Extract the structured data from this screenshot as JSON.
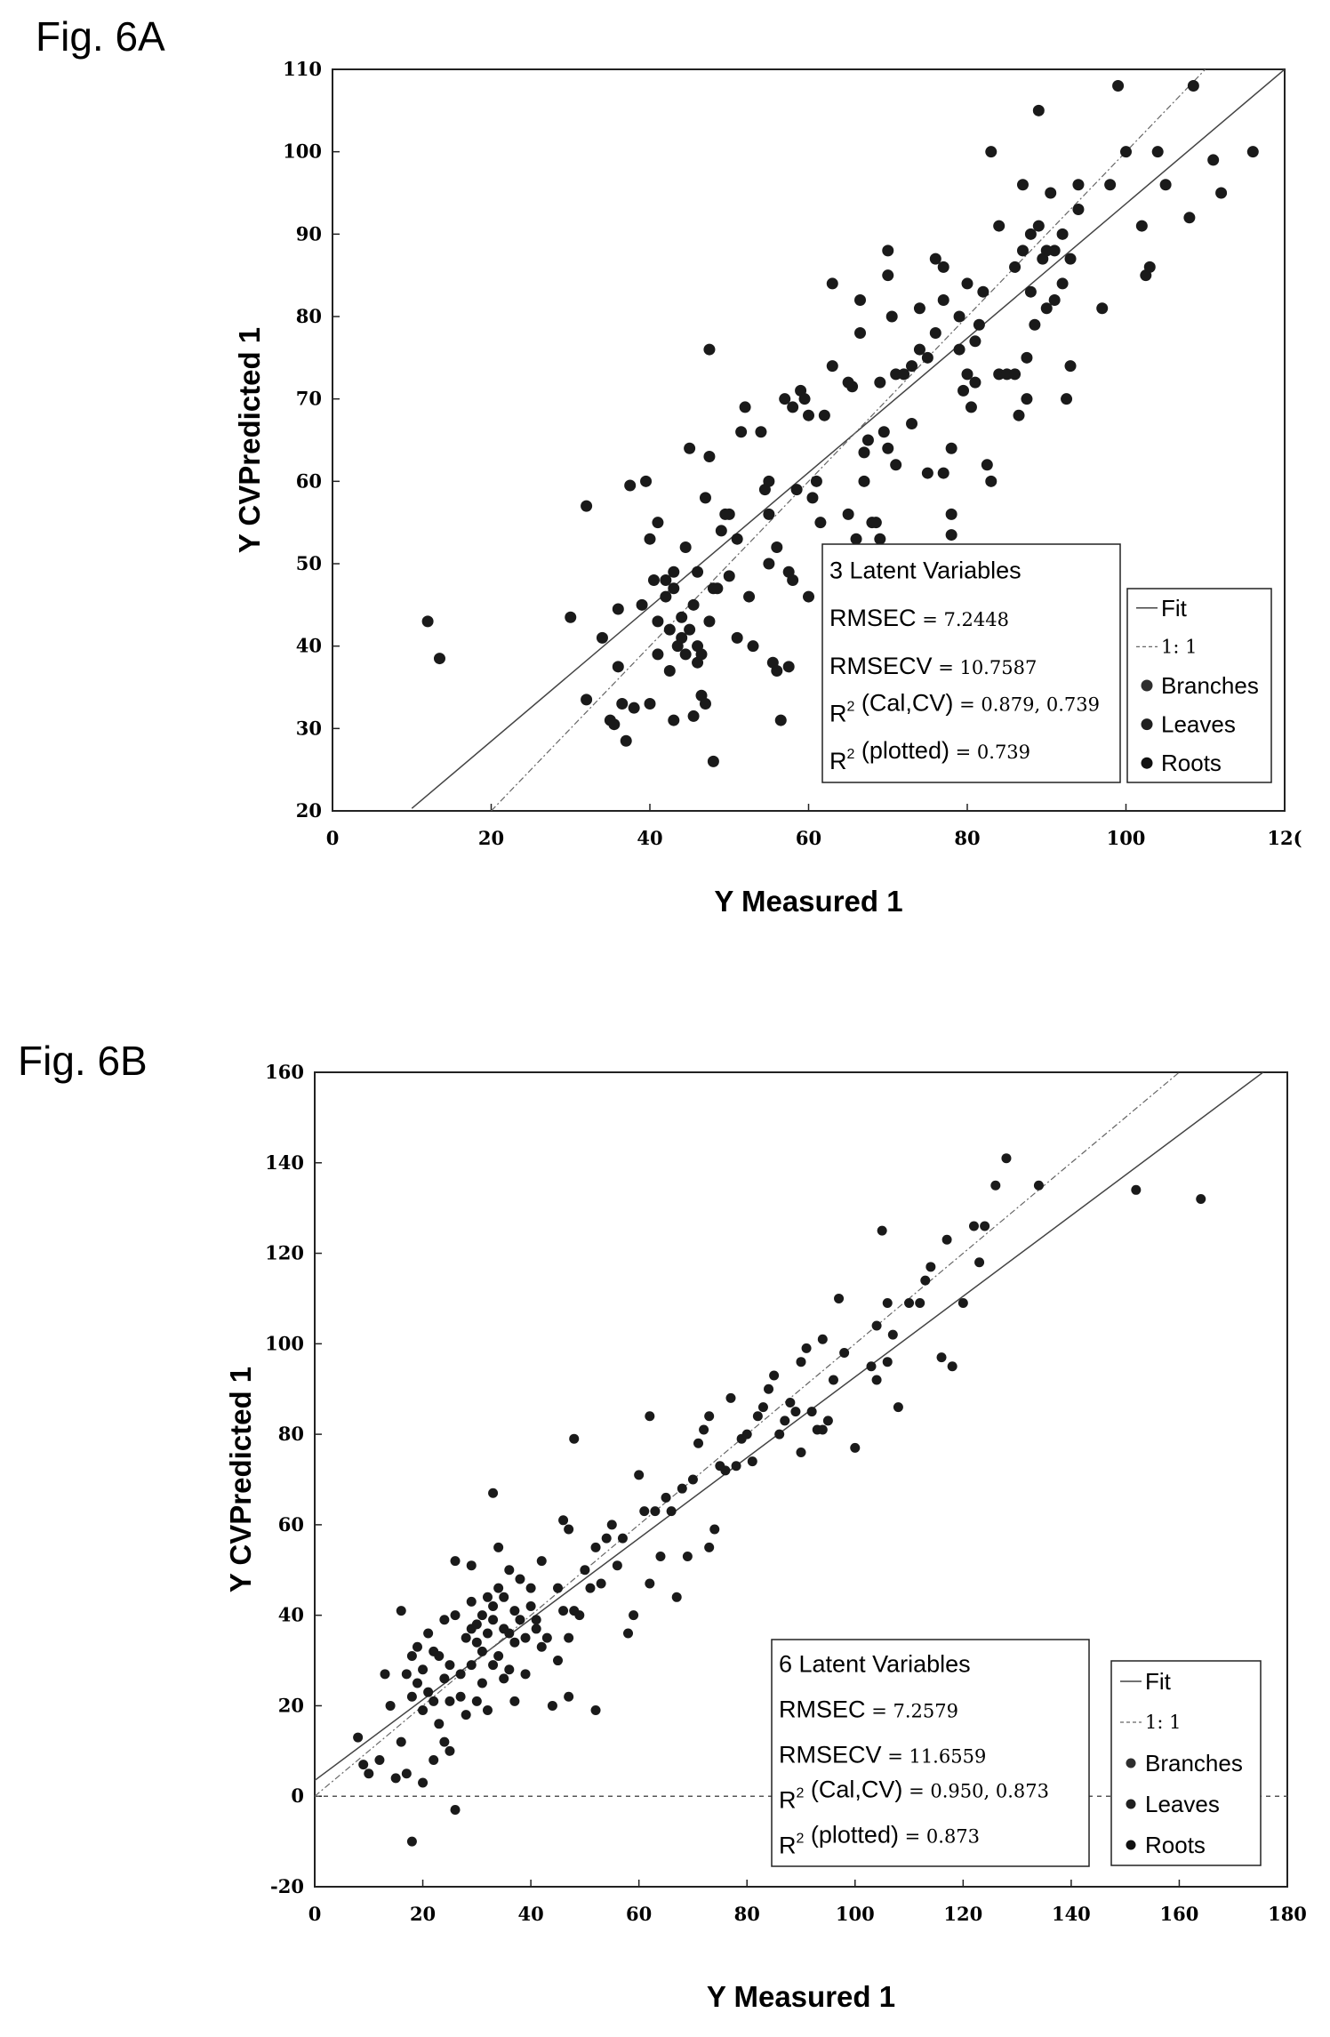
{
  "chart_data": [
    {
      "figure_label": "Fig. 6A",
      "type": "scatter",
      "xlabel": "Y Measured 1",
      "ylabel": "Y CVPredicted 1",
      "xlim": [
        0,
        120
      ],
      "ylim": [
        20,
        110
      ],
      "xticks": [
        "0",
        "20",
        "40",
        "60",
        "80",
        "100",
        "12("
      ],
      "yticks": [
        "20",
        "30",
        "40",
        "50",
        "60",
        "70",
        "80",
        "90",
        "100",
        "110"
      ],
      "stats": {
        "title": "3 Latent Variables",
        "rmsec_label": "RMSEC",
        "rmsec_value": "= 7.2448",
        "rmsecv_label": "RMSECV",
        "rmsecv_value": "= 10.7587",
        "r2cal_label": "(Cal,CV)",
        "r2cal_value": "= 0.879, 0.739",
        "r2plot_label": "(plotted)",
        "r2plot_value": "= 0.739"
      },
      "legend": {
        "fit": "Fit",
        "one_to_one": "1: 1",
        "branches": "Branches",
        "leaves": "Leaves",
        "roots": "Roots",
        "position": "right"
      },
      "fit_line": [
        [
          10,
          20.3
        ],
        [
          120,
          110
        ]
      ],
      "identity_line": [
        [
          20,
          20
        ],
        [
          110,
          110
        ]
      ],
      "points": [
        [
          12,
          43
        ],
        [
          13.5,
          38.5
        ],
        [
          30,
          43.5
        ],
        [
          32,
          33.5
        ],
        [
          32,
          57
        ],
        [
          34,
          41
        ],
        [
          35,
          31
        ],
        [
          35.5,
          30.5
        ],
        [
          36,
          37.5
        ],
        [
          36,
          44.5
        ],
        [
          36.5,
          33
        ],
        [
          37,
          28.5
        ],
        [
          37.5,
          59.5
        ],
        [
          38,
          32.5
        ],
        [
          39,
          45
        ],
        [
          39.5,
          60
        ],
        [
          40,
          53
        ],
        [
          40,
          33
        ],
        [
          40.5,
          48
        ],
        [
          41,
          55
        ],
        [
          41,
          43
        ],
        [
          41,
          39
        ],
        [
          42,
          46
        ],
        [
          42,
          48
        ],
        [
          42.5,
          37
        ],
        [
          42.5,
          42
        ],
        [
          43,
          49
        ],
        [
          43,
          47
        ],
        [
          43,
          31
        ],
        [
          43.5,
          40
        ],
        [
          44,
          41
        ],
        [
          44,
          43.5
        ],
        [
          44.5,
          39
        ],
        [
          44.5,
          52
        ],
        [
          45,
          64
        ],
        [
          45,
          42
        ],
        [
          45.5,
          31.5
        ],
        [
          45.5,
          45
        ],
        [
          46,
          49
        ],
        [
          46,
          38
        ],
        [
          46,
          40
        ],
        [
          46.5,
          39
        ],
        [
          46.5,
          34
        ],
        [
          47,
          58
        ],
        [
          47,
          33
        ],
        [
          47.5,
          43
        ],
        [
          47.5,
          76
        ],
        [
          47.5,
          63
        ],
        [
          48,
          47
        ],
        [
          48,
          26
        ],
        [
          48.5,
          47
        ],
        [
          49,
          54
        ],
        [
          49.5,
          56
        ],
        [
          50,
          48.5
        ],
        [
          50,
          56
        ],
        [
          51,
          53
        ],
        [
          51,
          41
        ],
        [
          51.5,
          66
        ],
        [
          52,
          69
        ],
        [
          52.5,
          46
        ],
        [
          53,
          40
        ],
        [
          54,
          66
        ],
        [
          54.5,
          59
        ],
        [
          55,
          50
        ],
        [
          55,
          56
        ],
        [
          55,
          60
        ],
        [
          55.5,
          38
        ],
        [
          56,
          37
        ],
        [
          56,
          52
        ],
        [
          56.5,
          31
        ],
        [
          57,
          70
        ],
        [
          57.5,
          49
        ],
        [
          57.5,
          37.5
        ],
        [
          58,
          48
        ],
        [
          58,
          69
        ],
        [
          58.5,
          59
        ],
        [
          59,
          71
        ],
        [
          59.5,
          70
        ],
        [
          60,
          68
        ],
        [
          60,
          46
        ],
        [
          60.5,
          58
        ],
        [
          61,
          60
        ],
        [
          61.5,
          55
        ],
        [
          62,
          68
        ],
        [
          63,
          74
        ],
        [
          63,
          84
        ],
        [
          63.5,
          46
        ],
        [
          64,
          48
        ],
        [
          64.5,
          47
        ],
        [
          65,
          72
        ],
        [
          65,
          56
        ],
        [
          65.5,
          71.5
        ],
        [
          66,
          53
        ],
        [
          66.5,
          78
        ],
        [
          66.5,
          82
        ],
        [
          67,
          60
        ],
        [
          67,
          63.5
        ],
        [
          67.5,
          65
        ],
        [
          68,
          55
        ],
        [
          68.5,
          55
        ],
        [
          69,
          72
        ],
        [
          69,
          53
        ],
        [
          69.5,
          66
        ],
        [
          70,
          88
        ],
        [
          70,
          85
        ],
        [
          70,
          64
        ],
        [
          70.5,
          80
        ],
        [
          71,
          73
        ],
        [
          71,
          62
        ],
        [
          72,
          73
        ],
        [
          73,
          67
        ],
        [
          73,
          74
        ],
        [
          74,
          76
        ],
        [
          74,
          81
        ],
        [
          75,
          75
        ],
        [
          75,
          61
        ],
        [
          76,
          87
        ],
        [
          76,
          78
        ],
        [
          77,
          86
        ],
        [
          77,
          82
        ],
        [
          77,
          61
        ],
        [
          78,
          56
        ],
        [
          78,
          53.5
        ],
        [
          78,
          64
        ],
        [
          79,
          80
        ],
        [
          79,
          76
        ],
        [
          79.5,
          71
        ],
        [
          80,
          73
        ],
        [
          80,
          84
        ],
        [
          80.5,
          69
        ],
        [
          81,
          72
        ],
        [
          81,
          77
        ],
        [
          81.5,
          79
        ],
        [
          82,
          83
        ],
        [
          82.5,
          62
        ],
        [
          83,
          60
        ],
        [
          83,
          100
        ],
        [
          84,
          91
        ],
        [
          84,
          73
        ],
        [
          85,
          73
        ],
        [
          86,
          73
        ],
        [
          86,
          86
        ],
        [
          86.5,
          68
        ],
        [
          87,
          96
        ],
        [
          87,
          88
        ],
        [
          87.5,
          75
        ],
        [
          87.5,
          70
        ],
        [
          88,
          83
        ],
        [
          88,
          90
        ],
        [
          88.5,
          79
        ],
        [
          89,
          105
        ],
        [
          89,
          91
        ],
        [
          89.5,
          87
        ],
        [
          90,
          88
        ],
        [
          90,
          81
        ],
        [
          90.5,
          95
        ],
        [
          91,
          88
        ],
        [
          91,
          82
        ],
        [
          92,
          90
        ],
        [
          92,
          84
        ],
        [
          92.5,
          70
        ],
        [
          93,
          74
        ],
        [
          93,
          87
        ],
        [
          94,
          96
        ],
        [
          94,
          93
        ],
        [
          97,
          81
        ],
        [
          98,
          96
        ],
        [
          99,
          108
        ],
        [
          100,
          100
        ],
        [
          102,
          91
        ],
        [
          102.5,
          85
        ],
        [
          103,
          86
        ],
        [
          104,
          100
        ],
        [
          105,
          96
        ],
        [
          108,
          92
        ],
        [
          108.5,
          108
        ],
        [
          111,
          99
        ],
        [
          112,
          95
        ],
        [
          116,
          100
        ]
      ]
    },
    {
      "figure_label": "Fig. 6B",
      "type": "scatter",
      "xlabel": "Y Measured 1",
      "ylabel": "Y CVPredicted 1",
      "xlim": [
        0,
        180
      ],
      "ylim": [
        -20,
        160
      ],
      "xticks": [
        "0",
        "20",
        "40",
        "60",
        "80",
        "100",
        "120",
        "140",
        "160",
        "180"
      ],
      "yticks": [
        "-20",
        "0",
        "20",
        "40",
        "60",
        "80",
        "100",
        "120",
        "140",
        "160"
      ],
      "stats": {
        "title": "6 Latent Variables",
        "rmsec_label": "RMSEC",
        "rmsec_value": "= 7.2579",
        "rmsecv_label": "RMSECV",
        "rmsecv_value": "= 11.6559",
        "r2cal_label": "(Cal,CV)",
        "r2cal_value": "= 0.950, 0.873",
        "r2plot_label": "(plotted)",
        "r2plot_value": "= 0.873"
      },
      "legend": {
        "fit": "Fit",
        "one_to_one": "1: 1",
        "branches": "Branches",
        "leaves": "Leaves",
        "roots": "Roots",
        "position": "right"
      },
      "fit_line": [
        [
          0,
          3.5
        ],
        [
          180,
          164
        ]
      ],
      "identity_line": [
        [
          0,
          0
        ],
        [
          160,
          160
        ]
      ],
      "zero_line": 0,
      "points": [
        [
          8,
          13
        ],
        [
          9,
          7
        ],
        [
          10,
          5
        ],
        [
          12,
          8
        ],
        [
          13,
          27
        ],
        [
          14,
          20
        ],
        [
          15,
          4
        ],
        [
          16,
          12
        ],
        [
          16,
          41
        ],
        [
          17,
          5
        ],
        [
          17,
          27
        ],
        [
          18,
          31
        ],
        [
          18,
          -10
        ],
        [
          18,
          22
        ],
        [
          19,
          25
        ],
        [
          19,
          33
        ],
        [
          20,
          3
        ],
        [
          20,
          19
        ],
        [
          20,
          28
        ],
        [
          21,
          23
        ],
        [
          21,
          36
        ],
        [
          22,
          32
        ],
        [
          22,
          21
        ],
        [
          22,
          8
        ],
        [
          23,
          16
        ],
        [
          23,
          31
        ],
        [
          24,
          39
        ],
        [
          24,
          12
        ],
        [
          24,
          26
        ],
        [
          25,
          21
        ],
        [
          25,
          29
        ],
        [
          25,
          10
        ],
        [
          26,
          -3
        ],
        [
          26,
          52
        ],
        [
          26,
          40
        ],
        [
          27,
          27
        ],
        [
          27,
          22
        ],
        [
          28,
          35
        ],
        [
          28,
          18
        ],
        [
          29,
          51
        ],
        [
          29,
          37
        ],
        [
          29,
          29
        ],
        [
          29,
          43
        ],
        [
          30,
          34
        ],
        [
          30,
          21
        ],
        [
          30,
          38
        ],
        [
          31,
          25
        ],
        [
          31,
          40
        ],
        [
          31,
          32
        ],
        [
          32,
          19
        ],
        [
          32,
          36
        ],
        [
          32,
          44
        ],
        [
          33,
          29
        ],
        [
          33,
          42
        ],
        [
          33,
          67
        ],
        [
          33,
          39
        ],
        [
          34,
          55
        ],
        [
          34,
          31
        ],
        [
          34,
          46
        ],
        [
          35,
          26
        ],
        [
          35,
          37
        ],
        [
          35,
          44
        ],
        [
          36,
          50
        ],
        [
          36,
          36
        ],
        [
          36,
          28
        ],
        [
          37,
          21
        ],
        [
          37,
          34
        ],
        [
          37,
          41
        ],
        [
          38,
          39
        ],
        [
          38,
          48
        ],
        [
          39,
          27
        ],
        [
          39,
          35
        ],
        [
          40,
          46
        ],
        [
          40,
          42
        ],
        [
          41,
          37
        ],
        [
          41,
          39
        ],
        [
          42,
          33
        ],
        [
          42,
          52
        ],
        [
          43,
          35
        ],
        [
          44,
          20
        ],
        [
          45,
          30
        ],
        [
          45,
          46
        ],
        [
          46,
          41
        ],
        [
          46,
          61
        ],
        [
          47,
          35
        ],
        [
          47,
          59
        ],
        [
          47,
          22
        ],
        [
          48,
          79
        ],
        [
          48,
          41
        ],
        [
          49,
          40
        ],
        [
          50,
          50
        ],
        [
          51,
          46
        ],
        [
          52,
          19
        ],
        [
          52,
          55
        ],
        [
          53,
          47
        ],
        [
          54,
          57
        ],
        [
          55,
          60
        ],
        [
          56,
          51
        ],
        [
          57,
          57
        ],
        [
          58,
          36
        ],
        [
          59,
          40
        ],
        [
          60,
          71
        ],
        [
          61,
          63
        ],
        [
          62,
          84
        ],
        [
          62,
          47
        ],
        [
          63,
          63
        ],
        [
          64,
          53
        ],
        [
          65,
          66
        ],
        [
          66,
          63
        ],
        [
          67,
          44
        ],
        [
          68,
          68
        ],
        [
          69,
          53
        ],
        [
          70,
          70
        ],
        [
          71,
          78
        ],
        [
          72,
          81
        ],
        [
          73,
          55
        ],
        [
          73,
          84
        ],
        [
          74,
          59
        ],
        [
          75,
          73
        ],
        [
          76,
          72
        ],
        [
          77,
          88
        ],
        [
          78,
          73
        ],
        [
          79,
          79
        ],
        [
          80,
          80
        ],
        [
          81,
          74
        ],
        [
          82,
          84
        ],
        [
          83,
          86
        ],
        [
          84,
          90
        ],
        [
          85,
          93
        ],
        [
          86,
          80
        ],
        [
          87,
          83
        ],
        [
          88,
          87
        ],
        [
          89,
          85
        ],
        [
          90,
          76
        ],
        [
          90,
          96
        ],
        [
          91,
          99
        ],
        [
          92,
          85
        ],
        [
          93,
          81
        ],
        [
          94,
          81
        ],
        [
          94,
          101
        ],
        [
          95,
          83
        ],
        [
          96,
          92
        ],
        [
          97,
          110
        ],
        [
          98,
          98
        ],
        [
          100,
          77
        ],
        [
          103,
          95
        ],
        [
          104,
          104
        ],
        [
          104,
          92
        ],
        [
          105,
          125
        ],
        [
          106,
          109
        ],
        [
          106,
          96
        ],
        [
          107,
          102
        ],
        [
          108,
          86
        ],
        [
          110,
          109
        ],
        [
          112,
          109
        ],
        [
          113,
          114
        ],
        [
          114,
          117
        ],
        [
          116,
          97
        ],
        [
          117,
          123
        ],
        [
          118,
          95
        ],
        [
          120,
          109
        ],
        [
          122,
          126
        ],
        [
          123,
          118
        ],
        [
          124,
          126
        ],
        [
          126,
          135
        ],
        [
          128,
          141
        ],
        [
          134,
          135
        ],
        [
          152,
          134
        ],
        [
          164,
          132
        ]
      ]
    }
  ]
}
